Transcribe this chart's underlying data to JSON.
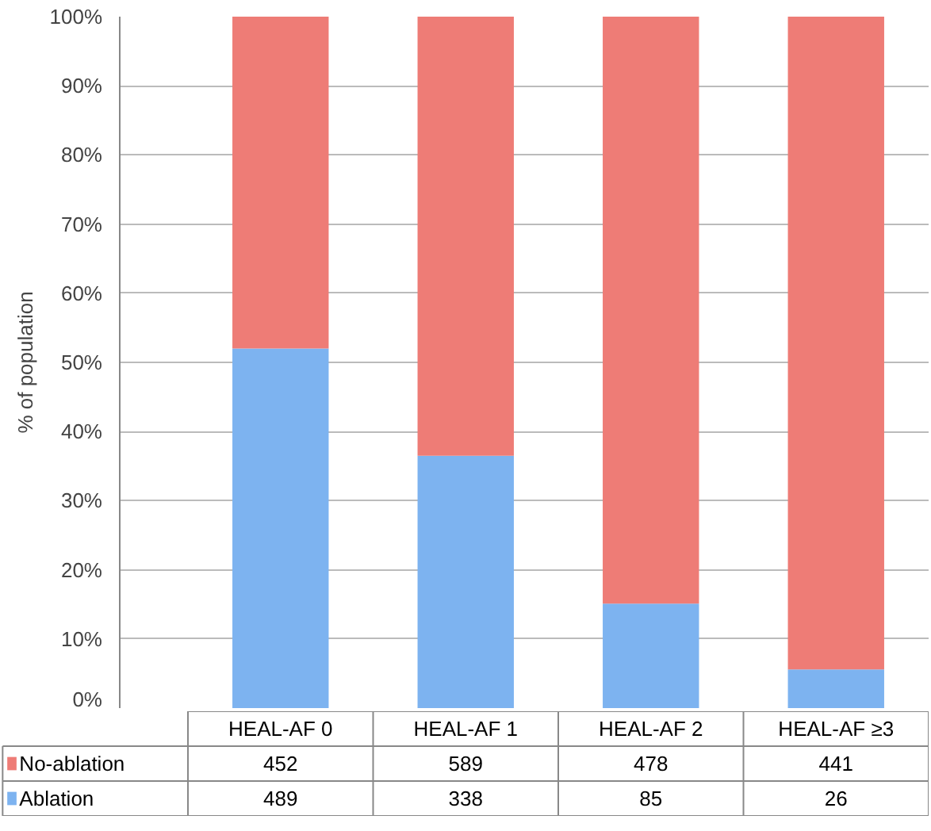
{
  "chart_data": {
    "type": "bar",
    "stacked": true,
    "ylabel": "% of population",
    "categories": [
      "HEAL-AF 0",
      "HEAL-AF 1",
      "HEAL-AF 2",
      "HEAL-AF ≥3"
    ],
    "series": [
      {
        "name": "Ablation",
        "color": "#7db3f0",
        "values": [
          52.0,
          36.5,
          15.1,
          5.6
        ]
      },
      {
        "name": "No-ablation",
        "color": "#ee7c76",
        "values": [
          48.0,
          63.5,
          84.9,
          94.4
        ]
      }
    ],
    "annotations": [
      "452",
      "589",
      "478",
      "441",
      "489",
      "338",
      "85",
      "26"
    ],
    "ylim": [
      0,
      100
    ],
    "yticks": [
      {
        "value": 0,
        "label": "0%"
      },
      {
        "value": 10,
        "label": "10%"
      },
      {
        "value": 20,
        "label": "20%"
      },
      {
        "value": 30,
        "label": "30%"
      },
      {
        "value": 40,
        "label": "40%"
      },
      {
        "value": 50,
        "label": "50%"
      },
      {
        "value": 60,
        "label": "60%"
      },
      {
        "value": 70,
        "label": "70%"
      },
      {
        "value": 80,
        "label": "80%"
      },
      {
        "value": 90,
        "label": "90%"
      },
      {
        "value": 100,
        "label": "100%"
      }
    ],
    "grid": "y",
    "legend": "bottom"
  }
}
